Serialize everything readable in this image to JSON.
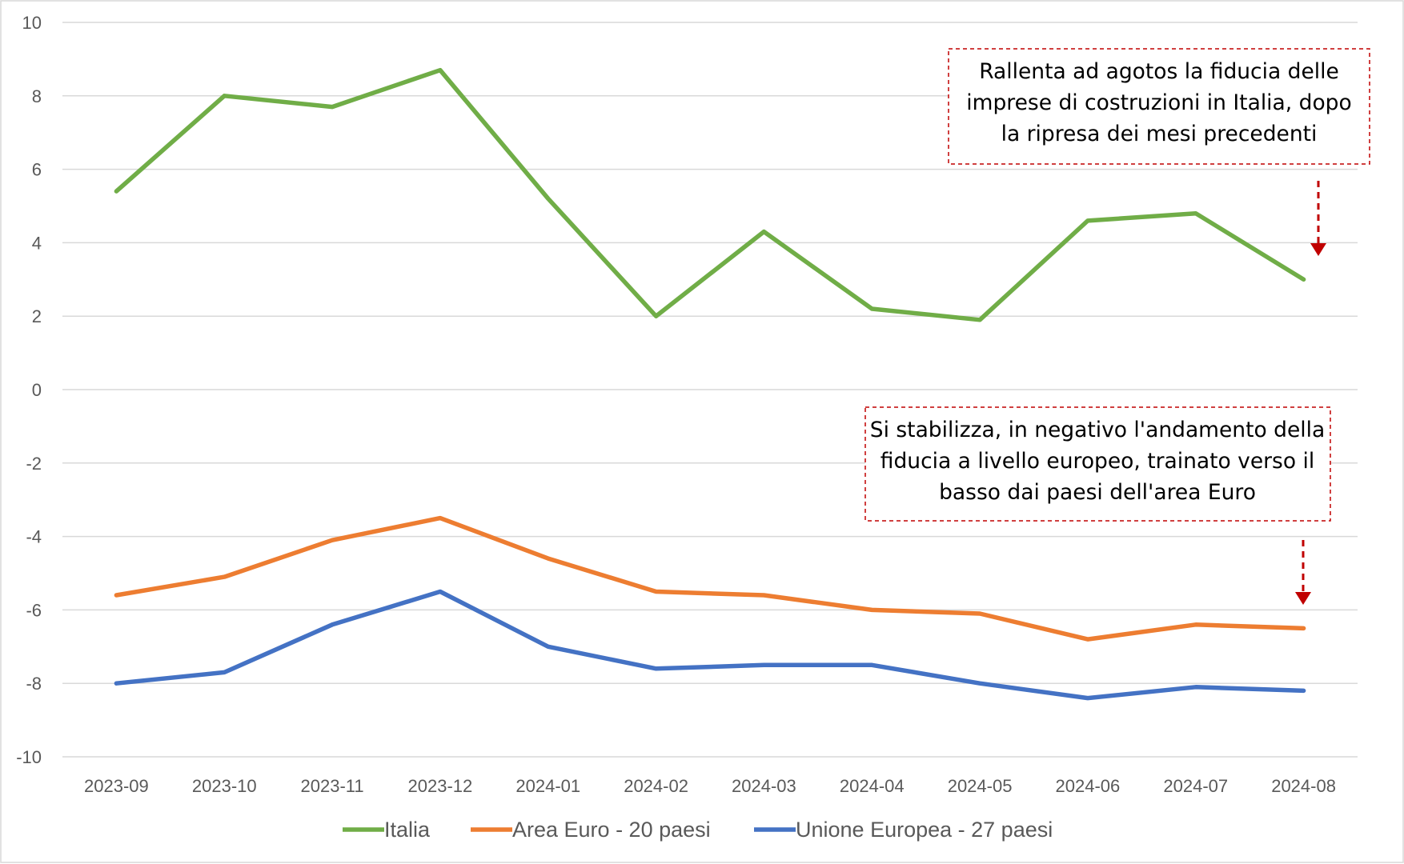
{
  "chart_data": {
    "type": "line",
    "categories": [
      "2023-09",
      "2023-10",
      "2023-11",
      "2023-12",
      "2024-01",
      "2024-02",
      "2024-03",
      "2024-04",
      "2024-05",
      "2024-06",
      "2024-07",
      "2024-08"
    ],
    "ylim": [
      -10,
      10
    ],
    "yticks": [
      10,
      8,
      6,
      4,
      2,
      0,
      -2,
      -4,
      -6,
      -8,
      -10
    ],
    "grid": true,
    "legend_position": "bottom",
    "series": [
      {
        "name": "Italia",
        "color": "#70AD47",
        "values": [
          5.4,
          8.0,
          7.7,
          8.7,
          5.2,
          2.0,
          4.3,
          2.2,
          1.9,
          4.6,
          4.8,
          3.0
        ]
      },
      {
        "name": "Area Euro - 20 paesi",
        "color": "#ED7D31",
        "values": [
          -5.6,
          -5.1,
          -4.1,
          -3.5,
          -4.6,
          -5.5,
          -5.6,
          -6.0,
          -6.1,
          -6.8,
          -6.4,
          -6.5
        ]
      },
      {
        "name": "Unione Europea - 27 paesi",
        "color": "#4472C4",
        "values": [
          -8.0,
          -7.7,
          -6.4,
          -5.5,
          -7.0,
          -7.6,
          -7.5,
          -7.5,
          -8.0,
          -8.4,
          -8.1,
          -8.2
        ]
      }
    ],
    "annotations": [
      {
        "lines": [
          "Rallenta ad agotos la fiducia delle",
          "imprese di costruzioni in Italia, dopo",
          "la ripresa dei mesi precedenti"
        ],
        "arrow_color": "#C00000"
      },
      {
        "lines": [
          "Si stabilizza, in negativo l'andamento della",
          "fiducia a livello europeo, trainato verso il",
          "basso dai paesi dell'area Euro"
        ],
        "arrow_color": "#C00000"
      }
    ]
  }
}
